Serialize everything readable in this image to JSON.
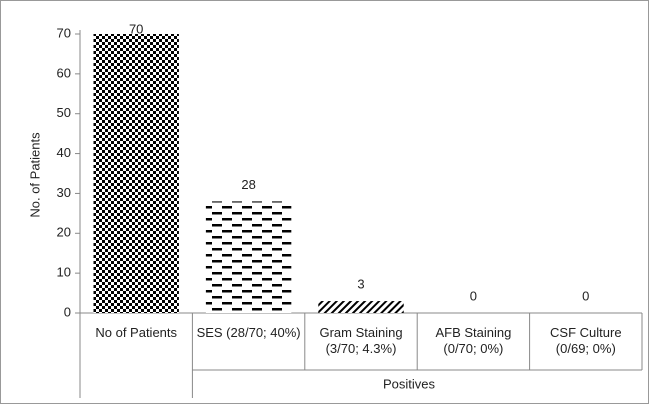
{
  "chart_data": {
    "type": "bar",
    "y_label": "No. of Patients",
    "group_label": "Positives",
    "categories": [
      "No of Patients",
      "SES (28/70; 40%)",
      "Gram Staining (3/70; 4.3%)",
      "AFB Staining (0/70; 0%)",
      "CSF Culture (0/69; 0%)"
    ],
    "values": [
      70,
      28,
      3,
      0,
      0
    ],
    "color": "#000000",
    "ylim": [
      0,
      70
    ],
    "yticks": [
      0,
      10,
      20,
      30,
      40,
      50,
      60,
      70
    ],
    "grid": false
  }
}
